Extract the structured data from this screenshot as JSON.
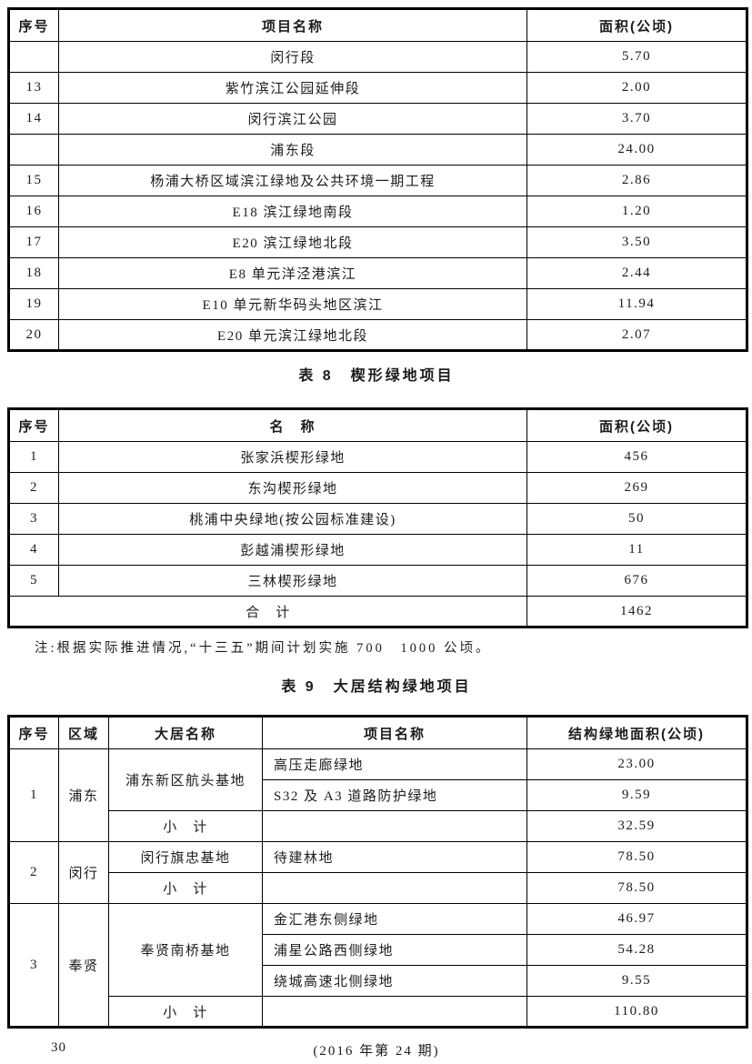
{
  "colors": {
    "ink": "#1c1c1c",
    "border": "#000000",
    "background": "#ffffff"
  },
  "table7": {
    "headers": [
      "序号",
      "项目名称",
      "面积(公顷)"
    ],
    "rows": [
      {
        "no": "",
        "name": "闵行段",
        "area": "5.70",
        "section": true
      },
      {
        "no": "13",
        "name": "紫竹滨江公园延伸段",
        "area": "2.00"
      },
      {
        "no": "14",
        "name": "闵行滨江公园",
        "area": "3.70"
      },
      {
        "no": "",
        "name": "浦东段",
        "area": "24.00",
        "section": true
      },
      {
        "no": "15",
        "name": "杨浦大桥区域滨江绿地及公共环境一期工程",
        "area": "2.86"
      },
      {
        "no": "16",
        "name": "E18 滨江绿地南段",
        "area": "1.20"
      },
      {
        "no": "17",
        "name": "E20 滨江绿地北段",
        "area": "3.50"
      },
      {
        "no": "18",
        "name": "E8 单元洋泾港滨江",
        "area": "2.44"
      },
      {
        "no": "19",
        "name": "E10 单元新华码头地区滨江",
        "area": "11.94"
      },
      {
        "no": "20",
        "name": "E20 单元滨江绿地北段",
        "area": "2.07"
      }
    ]
  },
  "table8": {
    "title": "表 8　楔形绿地项目",
    "headers": [
      "序号",
      "名　称",
      "面积(公顷)"
    ],
    "rows": [
      {
        "no": "1",
        "name": "张家浜楔形绿地",
        "area": "456"
      },
      {
        "no": "2",
        "name": "东沟楔形绿地",
        "area": "269"
      },
      {
        "no": "3",
        "name": "桃浦中央绿地(按公园标准建设)",
        "area": "50"
      },
      {
        "no": "4",
        "name": "彭越浦楔形绿地",
        "area": "11"
      },
      {
        "no": "5",
        "name": "三林楔形绿地",
        "area": "676"
      }
    ],
    "total_label": "合　计",
    "total_area": "1462",
    "note": "注:根据实际推进情况,“十三五”期间计划实施 700　1000 公顷。"
  },
  "table9": {
    "title": "表 9　大居结构绿地项目",
    "headers": [
      "序号",
      "区域",
      "大居名称",
      "项目名称",
      "结构绿地面积(公顷)"
    ],
    "subtotal_label": "小　计",
    "groups": [
      {
        "no": "1",
        "region": "浦东",
        "base": "浦东新区航头基地",
        "projects": [
          {
            "name": "高压走廊绿地",
            "area": "23.00"
          },
          {
            "name": "S32 及 A3 道路防护绿地",
            "area": "9.59"
          }
        ],
        "subtotal": "32.59"
      },
      {
        "no": "2",
        "region": "闵行",
        "base": "闵行旗忠基地",
        "projects": [
          {
            "name": "待建林地",
            "area": "78.50"
          }
        ],
        "subtotal": "78.50"
      },
      {
        "no": "3",
        "region": "奉贤",
        "base": "奉贤南桥基地",
        "projects": [
          {
            "name": "金汇港东侧绿地",
            "area": "46.97"
          },
          {
            "name": "浦星公路西侧绿地",
            "area": "54.28"
          },
          {
            "name": "绕城高速北侧绿地",
            "area": "9.55"
          }
        ],
        "subtotal": "110.80"
      }
    ]
  },
  "footer": {
    "page_number": "30",
    "issue": "(2016 年第 24 期)"
  }
}
